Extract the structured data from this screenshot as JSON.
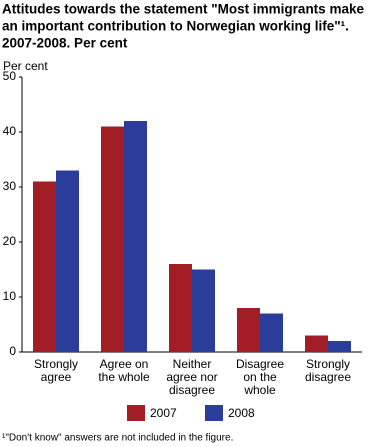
{
  "chart_data": {
    "type": "bar",
    "title": [
      "Attitudes towards the statement \"Most immigrants make",
      "an important contribution to Norwegian working life\"¹.",
      "2007-2008. Per cent"
    ],
    "y_label": "Per cent",
    "categories": [
      "Strongly\nagree",
      "Agree on\nthe whole",
      "Neither\nagree nor\ndisagree",
      "Disagree\non the\nwhole",
      "Strongly\ndisagree"
    ],
    "series": [
      {
        "name": "2007",
        "color": "#a21d25",
        "values": [
          31,
          41,
          16,
          8,
          3
        ]
      },
      {
        "name": "2008",
        "color": "#2a3d9b",
        "values": [
          33,
          42,
          15,
          7,
          2
        ]
      }
    ],
    "ylim": [
      0,
      50
    ],
    "yticks": [
      0,
      10,
      20,
      30,
      40,
      50
    ],
    "grid": false,
    "footnote": "¹\"Don't know\" answers are not included in the figure."
  }
}
